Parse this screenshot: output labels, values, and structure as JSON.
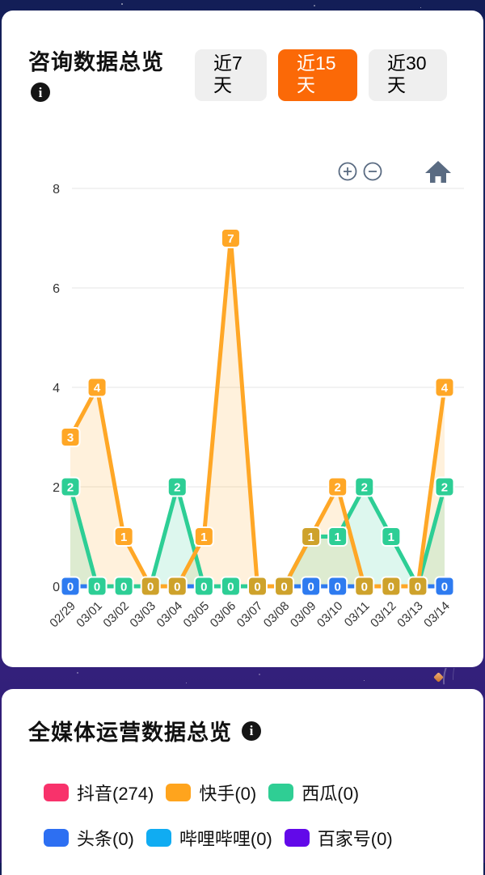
{
  "card1": {
    "title": "咨询数据总览",
    "info_label": "i",
    "active_tab_color": "#FB6907",
    "tabs": [
      {
        "label": "近7天",
        "active": false
      },
      {
        "label": "近15天",
        "active": true
      },
      {
        "label": "近30天",
        "active": false
      }
    ]
  },
  "chart_data": {
    "type": "line",
    "title": "",
    "xlabel": "",
    "ylabel": "",
    "ylim": [
      0,
      8
    ],
    "y_ticks": [
      0,
      2,
      4,
      6,
      8
    ],
    "grid": true,
    "legend_position": "none",
    "x_labels": [
      "02/29",
      "03/01",
      "03/02",
      "03/03",
      "03/04",
      "03/05",
      "03/06",
      "03/07",
      "03/08",
      "03/09",
      "03/10",
      "03/11",
      "03/12",
      "03/13",
      "03/14"
    ],
    "series": [
      {
        "name": "orange-series",
        "color": "#FFA726",
        "fill": "rgba(255,167,38,0.16)",
        "values": [
          3,
          4,
          1,
          0,
          0,
          1,
          7,
          0,
          0,
          1,
          2,
          0,
          0,
          0,
          4
        ]
      },
      {
        "name": "green-series",
        "color": "#2DCE95",
        "fill": "rgba(45,206,149,0.16)",
        "values": [
          2,
          0,
          0,
          0,
          2,
          0,
          0,
          0,
          0,
          1,
          1,
          2,
          1,
          0,
          2
        ]
      },
      {
        "name": "blue-series",
        "color": "#2E7BF0",
        "fill": "none",
        "values": [
          0,
          0,
          0,
          0,
          0,
          0,
          0,
          0,
          0,
          0,
          0,
          0,
          0,
          0,
          0
        ]
      }
    ],
    "badge_colors": {
      "orange": "#FFA726",
      "green": "#2DCE95",
      "blue": "#2E7BF0",
      "olive": "#CEA22B"
    },
    "zero_badge_colors": [
      "blue",
      "green",
      "green",
      "olive",
      "olive",
      "green",
      "green",
      "olive",
      "olive",
      "blue",
      "blue",
      "olive",
      "olive",
      "olive",
      "blue"
    ],
    "value_badges": [
      {
        "col": 0,
        "value": 3,
        "color": "orange"
      },
      {
        "col": 0,
        "value": 2,
        "color": "green"
      },
      {
        "col": 1,
        "value": 4,
        "color": "orange"
      },
      {
        "col": 2,
        "value": 1,
        "color": "orange"
      },
      {
        "col": 4,
        "value": 2,
        "color": "green"
      },
      {
        "col": 5,
        "value": 1,
        "color": "orange"
      },
      {
        "col": 6,
        "value": 7,
        "color": "orange"
      },
      {
        "col": 9,
        "value": 1,
        "color": "olive"
      },
      {
        "col": 10,
        "value": 2,
        "color": "orange"
      },
      {
        "col": 10,
        "value": 1,
        "color": "green"
      },
      {
        "col": 11,
        "value": 2,
        "color": "green"
      },
      {
        "col": 12,
        "value": 1,
        "color": "green"
      },
      {
        "col": 14,
        "value": 4,
        "color": "orange"
      },
      {
        "col": 14,
        "value": 2,
        "color": "green"
      }
    ]
  },
  "card2": {
    "title": "全媒体运营数据总览",
    "info_label": "i",
    "legend": [
      {
        "label": "抖音(274)",
        "color": "#F8326B"
      },
      {
        "label": "快手(0)",
        "color": "#FFA41D"
      },
      {
        "label": "西瓜(0)",
        "color": "#2FCE94"
      },
      {
        "label": "头条(0)",
        "color": "#2D6FF2"
      },
      {
        "label": "哔哩哔哩(0)",
        "color": "#10ACF2"
      },
      {
        "label": "百家号(0)",
        "color": "#6209E9"
      }
    ]
  }
}
